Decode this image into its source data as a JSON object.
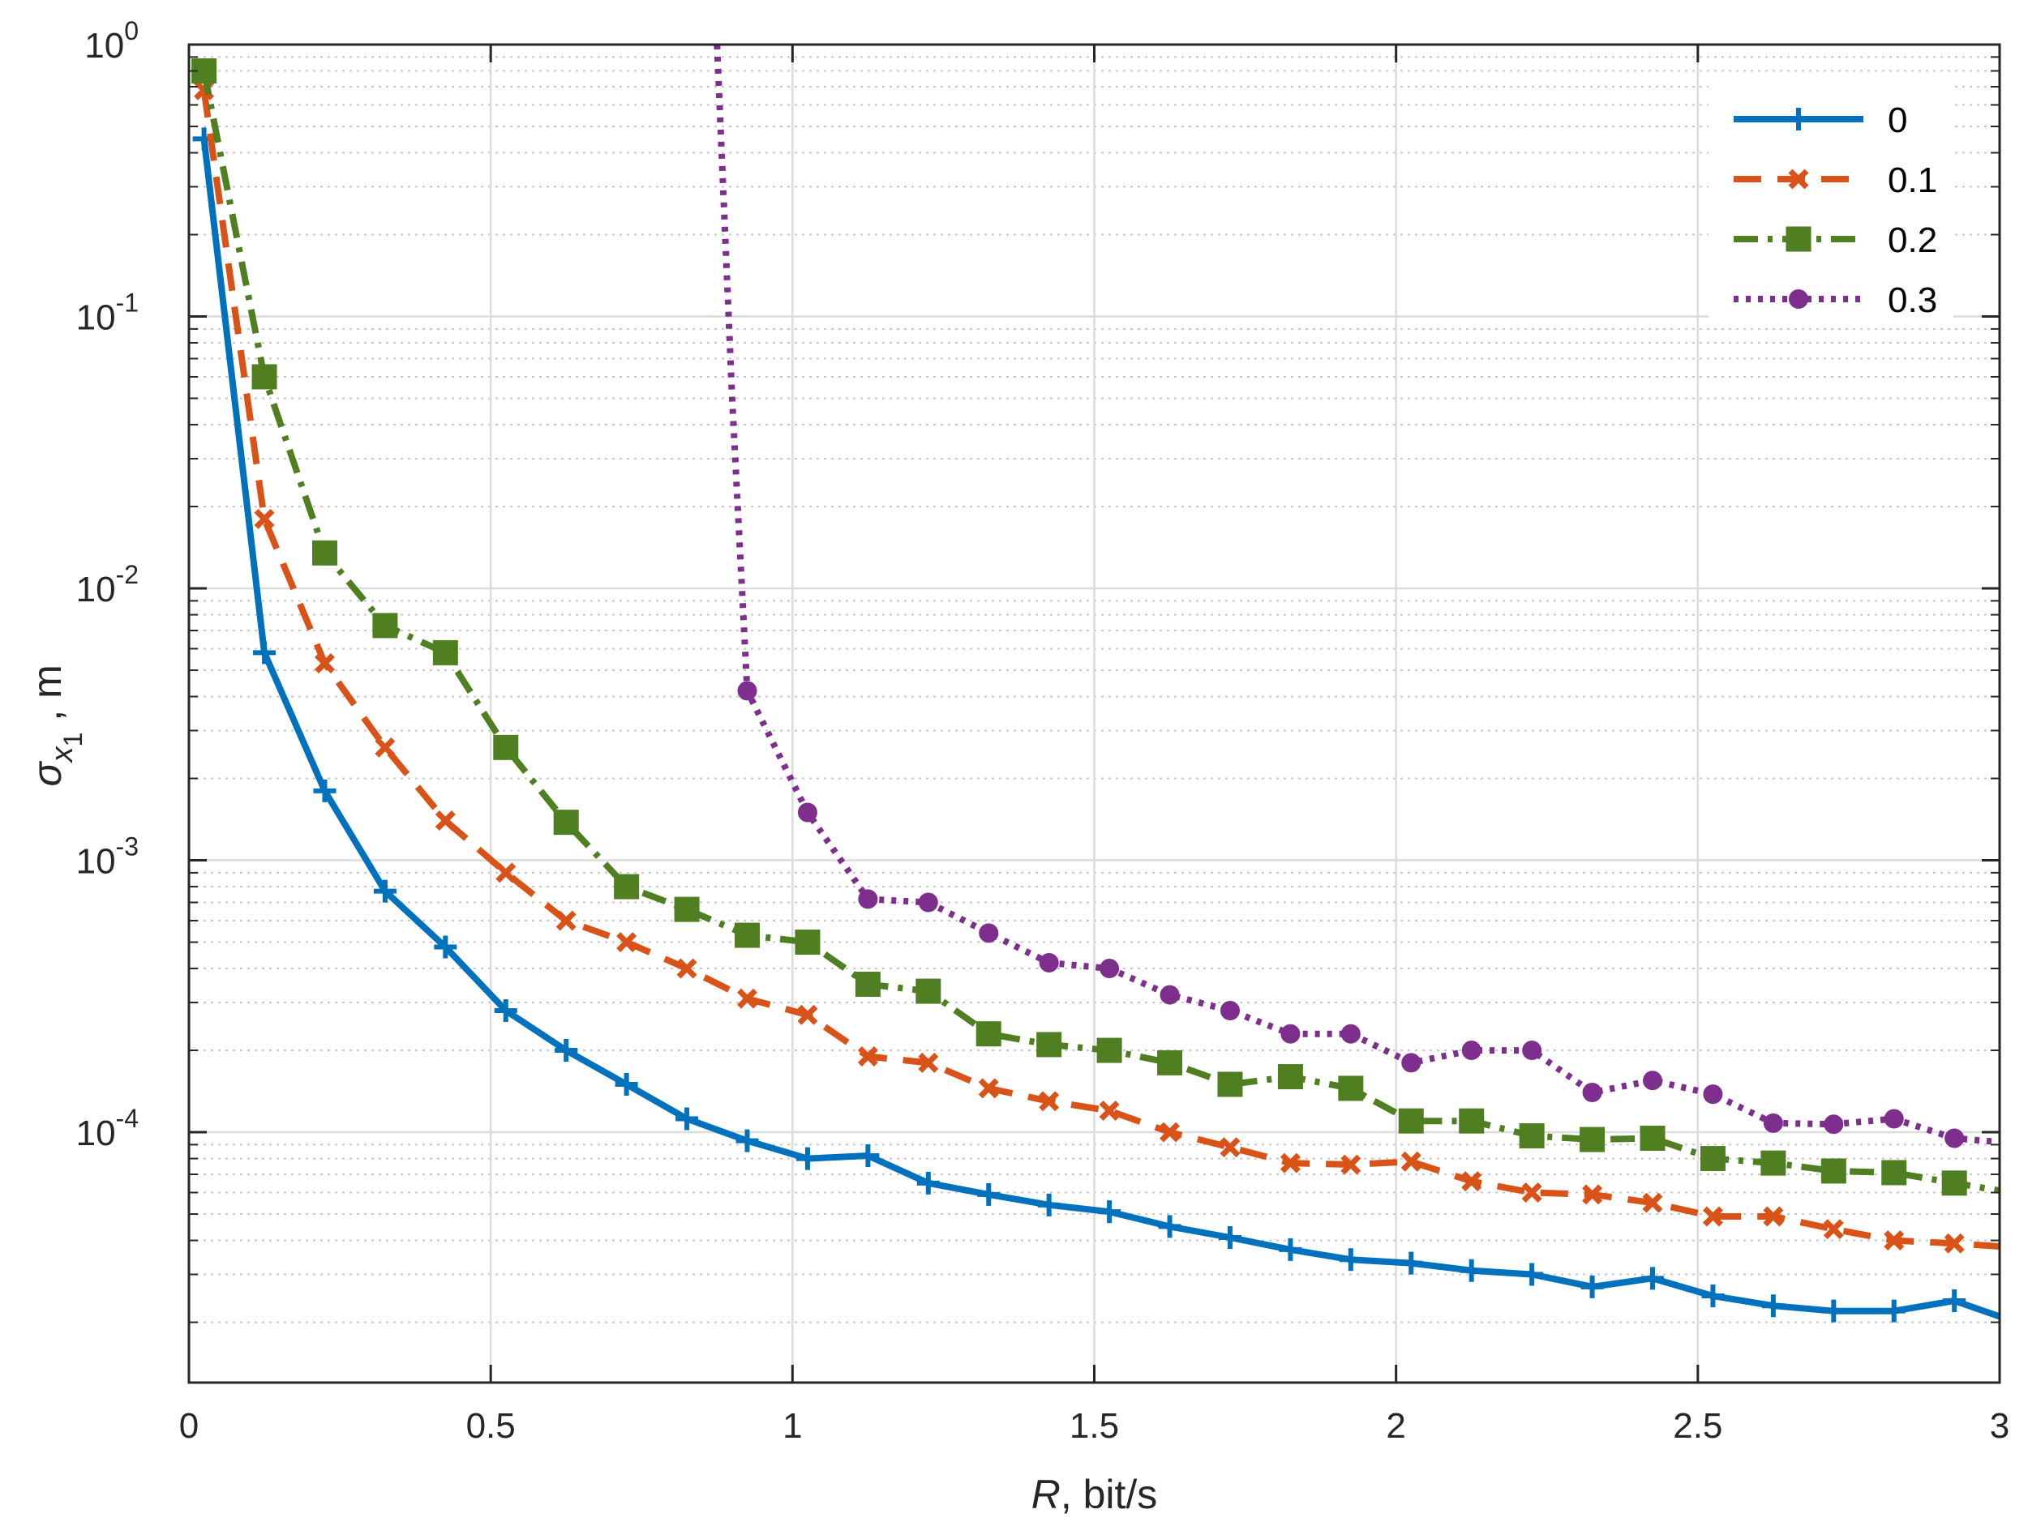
{
  "chart_data": {
    "type": "line",
    "xlabel_italic": "R",
    "xlabel_rest": ", bit/s",
    "ylabel_sigma": "σ",
    "ylabel_sub": "x",
    "ylabel_subsub": "1",
    "ylabel_rest": " , m",
    "xlim": [
      0,
      3
    ],
    "ylim": [
      1.2e-05,
      1
    ],
    "yscale": "log",
    "grid": true,
    "minor_grid": true,
    "legend_position": "top-right",
    "x_ticks": [
      {
        "value": 0,
        "label": "0"
      },
      {
        "value": 0.5,
        "label": "0.5"
      },
      {
        "value": 1,
        "label": "1"
      },
      {
        "value": 1.5,
        "label": "1.5"
      },
      {
        "value": 2,
        "label": "2"
      },
      {
        "value": 2.5,
        "label": "2.5"
      },
      {
        "value": 3,
        "label": "3"
      }
    ],
    "y_ticks": [
      {
        "value": 1,
        "base": "10",
        "exp": "0"
      },
      {
        "value": 0.1,
        "base": "10",
        "exp": "-1"
      },
      {
        "value": 0.01,
        "base": "10",
        "exp": "-2"
      },
      {
        "value": 0.001,
        "base": "10",
        "exp": "-3"
      },
      {
        "value": 0.0001,
        "base": "10",
        "exp": "-4"
      }
    ],
    "series": [
      {
        "name": "0",
        "color": "#0072BD",
        "dash": "solid",
        "marker": "plus",
        "x": [
          0.025,
          0.125,
          0.225,
          0.325,
          0.425,
          0.525,
          0.625,
          0.725,
          0.825,
          0.925,
          1.025,
          1.125,
          1.225,
          1.325,
          1.425,
          1.525,
          1.625,
          1.725,
          1.825,
          1.925,
          2.025,
          2.125,
          2.225,
          2.325,
          2.425,
          2.525,
          2.625,
          2.725,
          2.825,
          2.925,
          3.0
        ],
        "y": [
          0.45,
          0.0058,
          0.0018,
          0.00077,
          0.00048,
          0.00028,
          0.0002,
          0.00015,
          0.000112,
          9.3e-05,
          8e-05,
          8.2e-05,
          6.5e-05,
          5.9e-05,
          5.4e-05,
          5.1e-05,
          4.5e-05,
          4.1e-05,
          3.7e-05,
          3.4e-05,
          3.3e-05,
          3.1e-05,
          3e-05,
          2.7e-05,
          2.9e-05,
          2.5e-05,
          2.3e-05,
          2.2e-05,
          2.2e-05,
          2.4e-05,
          2.1e-05
        ]
      },
      {
        "name": "0.1",
        "color": "#D95319",
        "dash": "dashed",
        "marker": "x",
        "x": [
          0.025,
          0.125,
          0.225,
          0.325,
          0.425,
          0.525,
          0.625,
          0.725,
          0.825,
          0.925,
          1.025,
          1.125,
          1.225,
          1.325,
          1.425,
          1.525,
          1.625,
          1.725,
          1.825,
          1.925,
          2.025,
          2.125,
          2.225,
          2.325,
          2.425,
          2.525,
          2.625,
          2.725,
          2.825,
          2.925,
          3.0
        ],
        "y": [
          0.68,
          0.018,
          0.0053,
          0.0026,
          0.0014,
          0.0009,
          0.0006,
          0.0005,
          0.0004,
          0.00031,
          0.00027,
          0.00019,
          0.00018,
          0.000145,
          0.00013,
          0.00012,
          0.0001,
          8.8e-05,
          7.7e-05,
          7.6e-05,
          7.8e-05,
          6.6e-05,
          6e-05,
          5.9e-05,
          5.5e-05,
          4.9e-05,
          4.9e-05,
          4.4e-05,
          4e-05,
          3.9e-05,
          3.8e-05
        ]
      },
      {
        "name": "0.2",
        "color": "#4F7F21",
        "dash": "dashdot",
        "marker": "square",
        "x": [
          0.025,
          0.125,
          0.225,
          0.325,
          0.425,
          0.525,
          0.625,
          0.725,
          0.825,
          0.925,
          1.025,
          1.125,
          1.225,
          1.325,
          1.425,
          1.525,
          1.625,
          1.725,
          1.825,
          1.925,
          2.025,
          2.125,
          2.225,
          2.325,
          2.425,
          2.525,
          2.625,
          2.725,
          2.825,
          2.925,
          3.0
        ],
        "y": [
          0.8,
          0.06,
          0.0135,
          0.0073,
          0.0058,
          0.0026,
          0.00138,
          0.0008,
          0.00066,
          0.00053,
          0.0005,
          0.00035,
          0.00033,
          0.00023,
          0.00021,
          0.0002,
          0.00018,
          0.00015,
          0.00016,
          0.000145,
          0.00011,
          0.00011,
          9.7e-05,
          9.4e-05,
          9.5e-05,
          8e-05,
          7.7e-05,
          7.2e-05,
          7.1e-05,
          6.5e-05,
          6.1e-05
        ]
      },
      {
        "name": "0.3",
        "color": "#7E2F8E",
        "dash": "dotted",
        "marker": "circle",
        "x": [
          0.875,
          0.9,
          0.925,
          1.025,
          1.125,
          1.225,
          1.325,
          1.425,
          1.525,
          1.625,
          1.725,
          1.825,
          1.925,
          2.025,
          2.125,
          2.225,
          2.325,
          2.425,
          2.525,
          2.625,
          2.725,
          2.825,
          2.925,
          3.0
        ],
        "y": [
          1.0,
          0.05,
          0.0042,
          0.0015,
          0.00072,
          0.0007,
          0.00054,
          0.00042,
          0.0004,
          0.00032,
          0.00028,
          0.00023,
          0.00023,
          0.00018,
          0.0002,
          0.0002,
          0.00014,
          0.000155,
          0.000138,
          0.000108,
          0.000107,
          0.000112,
          9.5e-05,
          9.2e-05
        ],
        "marker_skip": [
          0
        ]
      }
    ]
  }
}
